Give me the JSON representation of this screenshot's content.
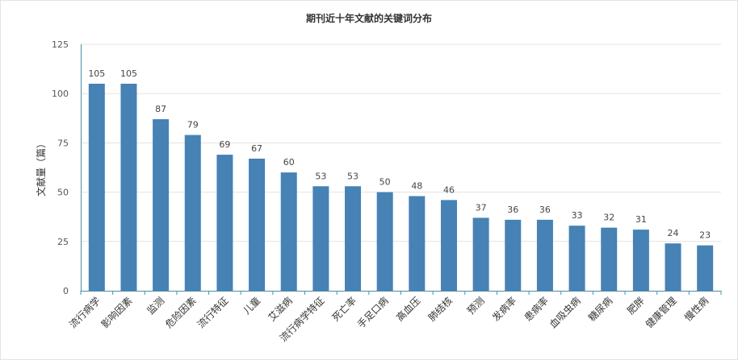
{
  "chart_data": {
    "type": "bar",
    "title": "期刊近十年文献的关键词分布",
    "ylabel": "文献量（篇）",
    "xlabel": "",
    "ylim": [
      0,
      125
    ],
    "yticks": [
      0,
      25,
      50,
      75,
      100,
      125
    ],
    "grid": true,
    "bar_color": "#4682b4",
    "categories": [
      "流行病学",
      "影响因素",
      "监测",
      "危险因素",
      "流行特征",
      "儿童",
      "艾滋病",
      "流行病学特征",
      "死亡率",
      "手足口病",
      "高血压",
      "肺结核",
      "预测",
      "发病率",
      "患病率",
      "血吸虫病",
      "糖尿病",
      "肥胖",
      "健康管理",
      "慢性病"
    ],
    "values": [
      105,
      105,
      87,
      79,
      69,
      67,
      60,
      53,
      53,
      50,
      48,
      46,
      37,
      36,
      36,
      33,
      32,
      31,
      24,
      23
    ]
  }
}
